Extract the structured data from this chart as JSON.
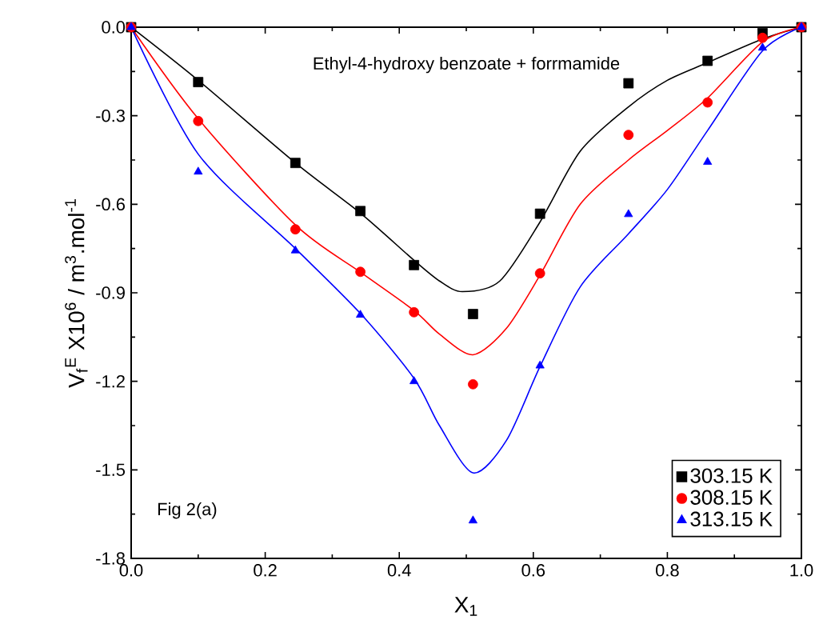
{
  "chart_data": {
    "type": "scatter",
    "xlabel": "X$_{1}$",
    "ylabel": "V$_{f}$$^{E}$ X10$^{6}$ / m$^{3}$.mol$^{-1}$",
    "annotations": [
      "Ethyl-4-hydroxy benzoate + forrmamide",
      "Fig 2(a)"
    ],
    "xlim": [
      0,
      1
    ],
    "ylim": [
      -1.8,
      0
    ],
    "xticks": [
      {
        "value": 0,
        "label": "0.0"
      },
      0.2,
      0.4,
      0.6,
      0.8,
      {
        "value": 1,
        "label": "1.0"
      }
    ],
    "yticks": [
      -1.8,
      -1.5,
      -1.2,
      -0.9,
      -0.6,
      -0.3,
      {
        "value": 0,
        "label": "0.0"
      }
    ],
    "legend": "bottom right",
    "grid": false,
    "series": [
      {
        "name": "303.15 K",
        "marker": "square",
        "color": "#000000",
        "x": [
          0,
          0.1,
          0.245,
          0.342,
          0.422,
          0.51,
          0.61,
          0.742,
          0.86,
          0.942,
          1
        ],
        "values": [
          0,
          -0.186,
          -0.46,
          -0.623,
          -0.806,
          -0.972,
          -0.632,
          -0.19,
          -0.114,
          -0.02,
          0
        ]
      },
      {
        "name": "308.15 K",
        "marker": "circle",
        "color": "#ff0000",
        "x": [
          0,
          0.1,
          0.245,
          0.342,
          0.422,
          0.51,
          0.61,
          0.742,
          0.86,
          0.942,
          1
        ],
        "values": [
          0,
          -0.318,
          -0.685,
          -0.829,
          -0.966,
          -1.21,
          -0.834,
          -0.365,
          -0.255,
          -0.036,
          0
        ]
      },
      {
        "name": "313.15 K",
        "marker": "triangle",
        "color": "#0000ff",
        "x": [
          0,
          0.1,
          0.245,
          0.342,
          0.422,
          0.51,
          0.61,
          0.742,
          0.86,
          0.942,
          1
        ],
        "values": [
          0,
          -0.49,
          -0.757,
          -0.975,
          -1.2,
          -1.672,
          -1.147,
          -0.634,
          -0.457,
          -0.07,
          0
        ]
      },
      {
        "type": "line",
        "marker": "none",
        "color": "#000000",
        "x": [
          0,
          0.1,
          0.245,
          0.342,
          0.422,
          0.46,
          0.494,
          0.55,
          0.61,
          0.67,
          0.742,
          0.8,
          0.86,
          0.942,
          1
        ],
        "values": [
          0,
          -0.18,
          -0.46,
          -0.63,
          -0.79,
          -0.86,
          -0.896,
          -0.86,
          -0.66,
          -0.42,
          -0.27,
          -0.18,
          -0.12,
          -0.04,
          0
        ]
      },
      {
        "type": "line",
        "marker": "none",
        "color": "#ff0000",
        "x": [
          0,
          0.1,
          0.245,
          0.342,
          0.422,
          0.46,
          0.51,
          0.56,
          0.61,
          0.67,
          0.742,
          0.8,
          0.86,
          0.942,
          1
        ],
        "values": [
          0,
          -0.31,
          -0.67,
          -0.83,
          -0.96,
          -1.04,
          -1.11,
          -1.02,
          -0.84,
          -0.6,
          -0.45,
          -0.35,
          -0.24,
          -0.05,
          0
        ]
      },
      {
        "type": "line",
        "marker": "none",
        "color": "#0000ff",
        "x": [
          0,
          0.1,
          0.245,
          0.342,
          0.422,
          0.46,
          0.51,
          0.56,
          0.61,
          0.67,
          0.742,
          0.8,
          0.86,
          0.942,
          1
        ],
        "values": [
          0,
          -0.43,
          -0.75,
          -0.97,
          -1.19,
          -1.35,
          -1.51,
          -1.4,
          -1.15,
          -0.88,
          -0.7,
          -0.55,
          -0.35,
          -0.08,
          0
        ]
      }
    ]
  }
}
